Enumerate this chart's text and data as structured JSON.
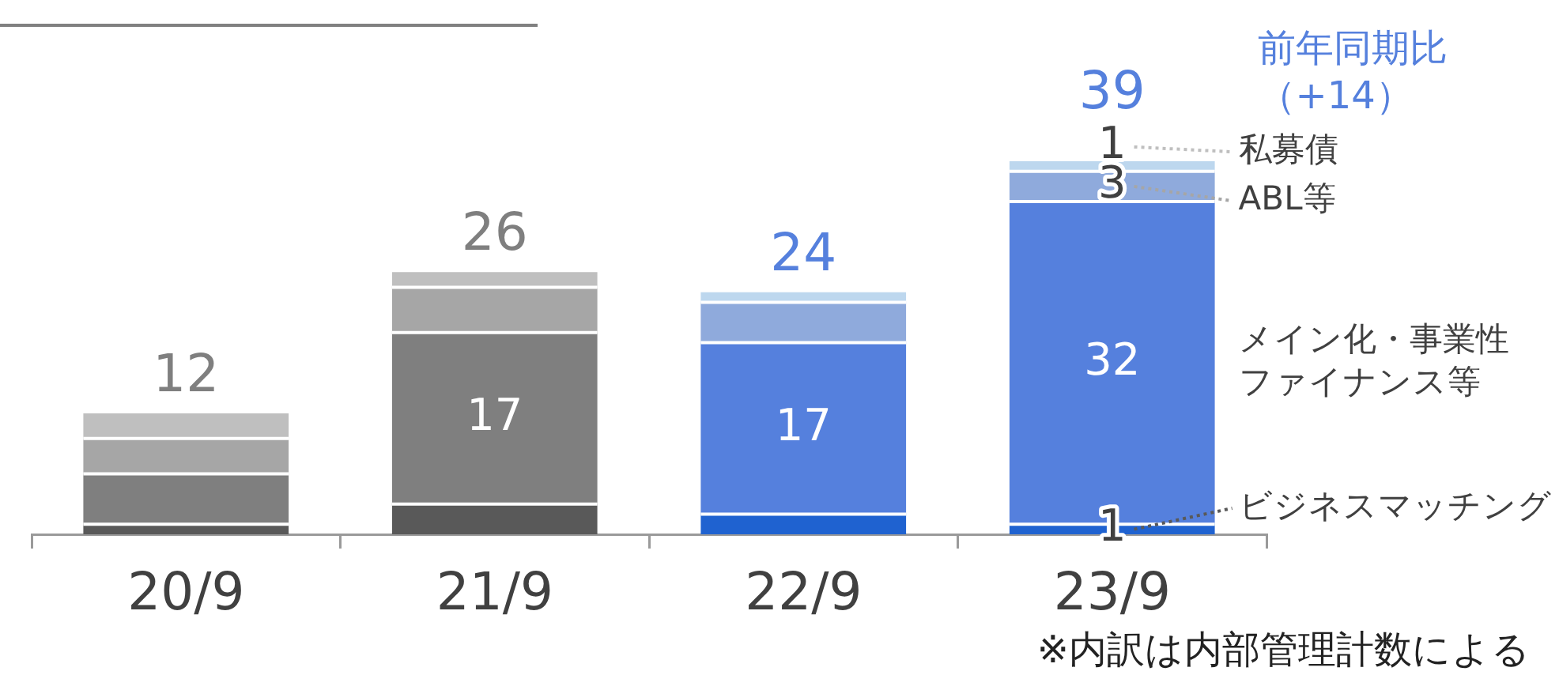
{
  "chart_data": {
    "type": "bar",
    "stacked": true,
    "tick_labels": "x",
    "legend": "right",
    "categories": [
      "20/9",
      "21/9",
      "22/9",
      "23/9"
    ],
    "series": [
      {
        "name": "ビジネスマッチング",
        "colors": [
          "#595959",
          "#595959",
          "#1f62d0",
          "#1f62d0"
        ],
        "values": [
          1,
          3,
          2,
          1
        ],
        "value_labels": [
          null,
          null,
          null,
          "1"
        ]
      },
      {
        "name": "メイン化・事業性ファイナンス等",
        "colors": [
          "#7f7f7f",
          "#7f7f7f",
          "#5580dd",
          "#5580dd"
        ],
        "values": [
          5,
          17,
          17,
          32
        ],
        "value_labels": [
          null,
          "17",
          "17",
          "32"
        ]
      },
      {
        "name": "ABL等",
        "colors": [
          "#a6a6a6",
          "#a6a6a6",
          "#8faadc",
          "#8faadc"
        ],
        "values": [
          3.5,
          4.5,
          4,
          3
        ],
        "value_labels": [
          null,
          null,
          null,
          "3"
        ]
      },
      {
        "name": "私募債",
        "colors": [
          "#bfbfbf",
          "#bfbfbf",
          "#bdd7ee",
          "#bdd7ee"
        ],
        "values": [
          2.5,
          1.5,
          1,
          1
        ],
        "value_labels": [
          null,
          null,
          null,
          "1"
        ]
      }
    ],
    "totals": [
      "12",
      "26",
      "24",
      "39"
    ],
    "annotations": [
      "前年同期比（+14）",
      "※内訳は内部管理計数による"
    ]
  }
}
